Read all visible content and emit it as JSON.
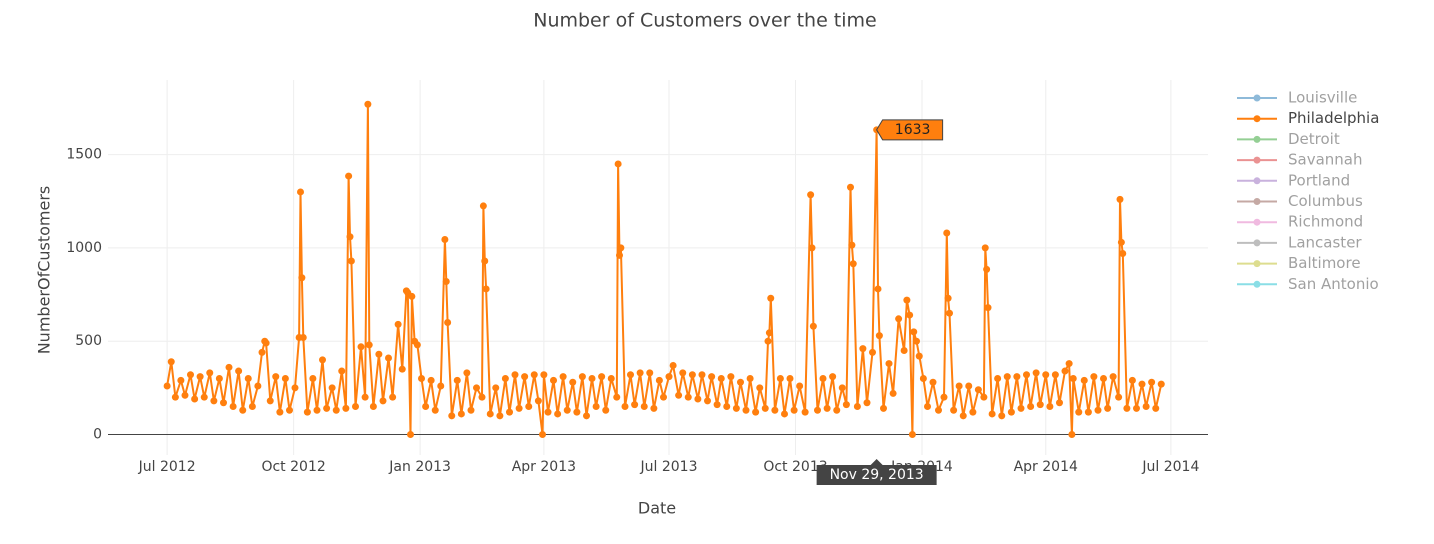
{
  "chart_data": {
    "type": "line",
    "title": "Number of Customers over the time",
    "x_label": "Date",
    "y_label": "NumberOfCustomers",
    "xlim": [
      "2012-05-19",
      "2014-07-28"
    ],
    "xticks": [
      {
        "value": "2012-07-01",
        "label": "Jul 2012"
      },
      {
        "value": "2012-10-01",
        "label": "Oct 2012"
      },
      {
        "value": "2013-01-01",
        "label": "Jan 2013"
      },
      {
        "value": "2013-04-01",
        "label": "Apr 2013"
      },
      {
        "value": "2013-07-01",
        "label": "Jul 2013"
      },
      {
        "value": "2013-10-01",
        "label": "Oct 2013"
      },
      {
        "value": "2014-01-01",
        "label": "Jan 2014"
      },
      {
        "value": "2014-04-01",
        "label": "Apr 2014"
      },
      {
        "value": "2014-07-01",
        "label": "Jul 2014"
      }
    ],
    "ylim": [
      -110,
      1900
    ],
    "yticks": [
      0,
      500,
      1000,
      1500
    ],
    "grid": true,
    "legend": "right",
    "hover": {
      "x": "2013-11-29",
      "y": 1633,
      "x_label": "Nov 29, 2013"
    },
    "series": [
      {
        "name": "Louisville",
        "color": "#1f77b4",
        "visible": "legendonly"
      },
      {
        "name": "Philadelphia",
        "color": "#ff7f0e",
        "x": [
          "2012-07-01",
          "2012-07-04",
          "2012-07-07",
          "2012-07-11",
          "2012-07-14",
          "2012-07-18",
          "2012-07-21",
          "2012-07-25",
          "2012-07-28",
          "2012-08-01",
          "2012-08-04",
          "2012-08-08",
          "2012-08-11",
          "2012-08-15",
          "2012-08-18",
          "2012-08-22",
          "2012-08-25",
          "2012-08-29",
          "2012-09-01",
          "2012-09-05",
          "2012-09-08",
          "2012-09-10",
          "2012-09-11",
          "2012-09-14",
          "2012-09-18",
          "2012-09-21",
          "2012-09-25",
          "2012-09-28",
          "2012-10-02",
          "2012-10-05",
          "2012-10-06",
          "2012-10-07",
          "2012-10-08",
          "2012-10-11",
          "2012-10-15",
          "2012-10-18",
          "2012-10-22",
          "2012-10-25",
          "2012-10-29",
          "2012-11-01",
          "2012-11-05",
          "2012-11-08",
          "2012-11-10",
          "2012-11-11",
          "2012-11-12",
          "2012-11-15",
          "2012-11-19",
          "2012-11-22",
          "2012-11-24",
          "2012-11-25",
          "2012-11-28",
          "2012-12-02",
          "2012-12-05",
          "2012-12-09",
          "2012-12-12",
          "2012-12-16",
          "2012-12-19",
          "2012-12-22",
          "2012-12-23",
          "2012-12-25",
          "2012-12-26",
          "2012-12-28",
          "2012-12-30",
          "2013-01-02",
          "2013-01-05",
          "2013-01-09",
          "2013-01-12",
          "2013-01-16",
          "2013-01-19",
          "2013-01-20",
          "2013-01-21",
          "2013-01-24",
          "2013-01-28",
          "2013-01-31",
          "2013-02-04",
          "2013-02-07",
          "2013-02-11",
          "2013-02-15",
          "2013-02-16",
          "2013-02-17",
          "2013-02-18",
          "2013-02-21",
          "2013-02-25",
          "2013-02-28",
          "2013-03-04",
          "2013-03-07",
          "2013-03-11",
          "2013-03-14",
          "2013-03-18",
          "2013-03-21",
          "2013-03-25",
          "2013-03-28",
          "2013-03-31",
          "2013-04-01",
          "2013-04-04",
          "2013-04-08",
          "2013-04-11",
          "2013-04-15",
          "2013-04-18",
          "2013-04-22",
          "2013-04-25",
          "2013-04-29",
          "2013-05-02",
          "2013-05-06",
          "2013-05-09",
          "2013-05-13",
          "2013-05-16",
          "2013-05-20",
          "2013-05-24",
          "2013-05-25",
          "2013-05-26",
          "2013-05-27",
          "2013-05-30",
          "2013-06-03",
          "2013-06-06",
          "2013-06-10",
          "2013-06-13",
          "2013-06-17",
          "2013-06-20",
          "2013-06-24",
          "2013-06-27",
          "2013-07-01",
          "2013-07-04",
          "2013-07-08",
          "2013-07-11",
          "2013-07-15",
          "2013-07-18",
          "2013-07-22",
          "2013-07-25",
          "2013-07-29",
          "2013-08-01",
          "2013-08-05",
          "2013-08-08",
          "2013-08-12",
          "2013-08-15",
          "2013-08-19",
          "2013-08-22",
          "2013-08-26",
          "2013-08-29",
          "2013-09-02",
          "2013-09-05",
          "2013-09-09",
          "2013-09-11",
          "2013-09-12",
          "2013-09-13",
          "2013-09-16",
          "2013-09-20",
          "2013-09-23",
          "2013-09-27",
          "2013-09-30",
          "2013-10-04",
          "2013-10-08",
          "2013-10-12",
          "2013-10-13",
          "2013-10-14",
          "2013-10-17",
          "2013-10-21",
          "2013-10-24",
          "2013-10-28",
          "2013-10-31",
          "2013-11-04",
          "2013-11-07",
          "2013-11-10",
          "2013-11-11",
          "2013-11-12",
          "2013-11-15",
          "2013-11-19",
          "2013-11-22",
          "2013-11-26",
          "2013-11-29",
          "2013-11-30",
          "2013-12-01",
          "2013-12-04",
          "2013-12-08",
          "2013-12-11",
          "2013-12-15",
          "2013-12-19",
          "2013-12-21",
          "2013-12-23",
          "2013-12-25",
          "2013-12-26",
          "2013-12-28",
          "2013-12-30",
          "2014-01-02",
          "2014-01-05",
          "2014-01-09",
          "2014-01-13",
          "2014-01-17",
          "2014-01-19",
          "2014-01-20",
          "2014-01-21",
          "2014-01-24",
          "2014-01-28",
          "2014-01-31",
          "2014-02-04",
          "2014-02-07",
          "2014-02-11",
          "2014-02-15",
          "2014-02-16",
          "2014-02-17",
          "2014-02-18",
          "2014-02-21",
          "2014-02-25",
          "2014-02-28",
          "2014-03-04",
          "2014-03-07",
          "2014-03-11",
          "2014-03-14",
          "2014-03-18",
          "2014-03-21",
          "2014-03-25",
          "2014-03-28",
          "2014-04-01",
          "2014-04-04",
          "2014-04-08",
          "2014-04-11",
          "2014-04-15",
          "2014-04-18",
          "2014-04-20",
          "2014-04-21",
          "2014-04-25",
          "2014-04-29",
          "2014-05-02",
          "2014-05-06",
          "2014-05-09",
          "2014-05-13",
          "2014-05-16",
          "2014-05-20",
          "2014-05-24",
          "2014-05-25",
          "2014-05-26",
          "2014-05-27",
          "2014-05-30",
          "2014-06-03",
          "2014-06-06",
          "2014-06-10",
          "2014-06-13",
          "2014-06-17",
          "2014-06-20",
          "2014-06-24"
        ],
        "values": [
          260,
          390,
          200,
          290,
          210,
          320,
          190,
          310,
          200,
          330,
          180,
          300,
          170,
          360,
          150,
          340,
          130,
          300,
          150,
          260,
          440,
          500,
          490,
          180,
          310,
          120,
          300,
          130,
          250,
          520,
          1300,
          840,
          520,
          120,
          300,
          130,
          400,
          140,
          250,
          130,
          340,
          140,
          1385,
          1060,
          930,
          150,
          470,
          200,
          1770,
          480,
          150,
          430,
          180,
          410,
          200,
          590,
          350,
          770,
          760,
          0,
          740,
          500,
          480,
          300,
          150,
          290,
          130,
          260,
          1045,
          820,
          600,
          100,
          290,
          110,
          330,
          130,
          250,
          200,
          1225,
          930,
          780,
          110,
          250,
          100,
          300,
          120,
          320,
          140,
          310,
          150,
          320,
          180,
          0,
          320,
          120,
          290,
          110,
          310,
          130,
          280,
          120,
          310,
          100,
          300,
          150,
          310,
          130,
          300,
          200,
          1450,
          960,
          1000,
          150,
          320,
          160,
          330,
          150,
          330,
          140,
          290,
          200,
          310,
          370,
          210,
          330,
          200,
          320,
          190,
          320,
          180,
          310,
          160,
          300,
          150,
          310,
          140,
          280,
          130,
          300,
          120,
          250,
          140,
          500,
          545,
          730,
          130,
          300,
          110,
          300,
          130,
          260,
          120,
          1285,
          1000,
          580,
          130,
          300,
          140,
          310,
          130,
          250,
          160,
          1325,
          1015,
          915,
          150,
          460,
          170,
          440,
          1633,
          780,
          530,
          140,
          380,
          220,
          620,
          450,
          720,
          640,
          0,
          550,
          500,
          420,
          300,
          150,
          280,
          130,
          200,
          1080,
          730,
          650,
          130,
          260,
          100,
          260,
          120,
          240,
          200,
          1000,
          885,
          680,
          110,
          300,
          100,
          310,
          120,
          310,
          140,
          320,
          150,
          330,
          160,
          320,
          150,
          320,
          170,
          340,
          380,
          0,
          300,
          120,
          290,
          120,
          310,
          130,
          300,
          140,
          310,
          200,
          1260,
          1030,
          970,
          140,
          290,
          140,
          270,
          150,
          280,
          140,
          270
        ]
      },
      {
        "name": "Detroit",
        "color": "#2ca02c",
        "visible": "legendonly"
      },
      {
        "name": "Savannah",
        "color": "#d62728",
        "visible": "legendonly"
      },
      {
        "name": "Portland",
        "color": "#9467bd",
        "visible": "legendonly"
      },
      {
        "name": "Columbus",
        "color": "#8c564b",
        "visible": "legendonly"
      },
      {
        "name": "Richmond",
        "color": "#e377c2",
        "visible": "legendonly"
      },
      {
        "name": "Lancaster",
        "color": "#7f7f7f",
        "visible": "legendonly"
      },
      {
        "name": "Baltimore",
        "color": "#bcbd22",
        "visible": "legendonly"
      },
      {
        "name": "San Antonio",
        "color": "#17becf",
        "visible": "legendonly"
      }
    ]
  }
}
